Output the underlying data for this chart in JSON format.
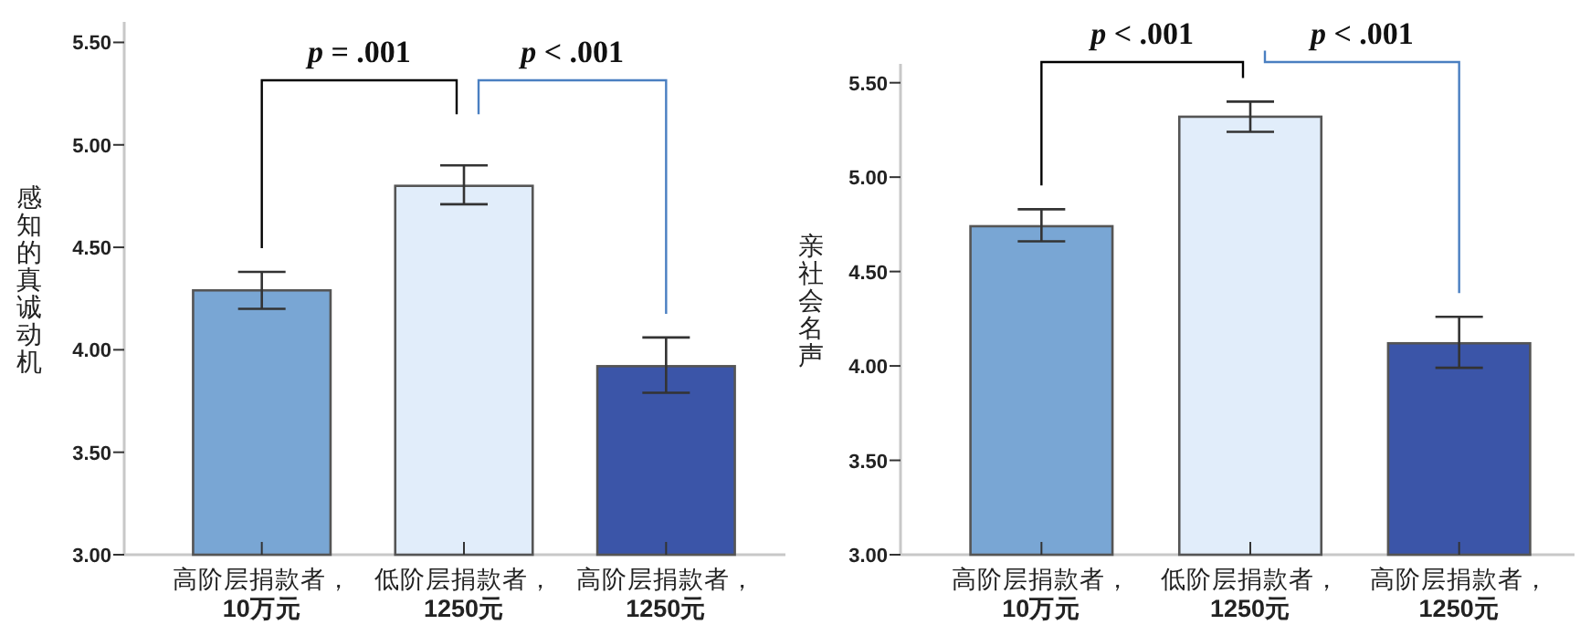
{
  "chart_data": [
    {
      "type": "bar",
      "ylabel": "感知的真诚动机",
      "categories": [
        "高阶层捐款者，\n10万元",
        "低阶层捐款者，\n1250元",
        "高阶层捐款者，\n1250元"
      ],
      "values": [
        4.29,
        4.8,
        3.92
      ],
      "colors": [
        "#79a6d4",
        "#e1edfa",
        "#3b55a8"
      ],
      "errors": [
        [
          4.2,
          4.38
        ],
        [
          4.71,
          4.9
        ],
        [
          3.79,
          4.06
        ]
      ],
      "ylim": [
        3,
        5.6
      ],
      "yticks": [
        {
          "value": 3,
          "label": "3.00"
        },
        {
          "value": 3.5,
          "label": "3.50"
        },
        {
          "value": 4,
          "label": "4.00"
        },
        {
          "value": 4.5,
          "label": "4.50"
        },
        {
          "value": 5,
          "label": "5.00"
        },
        {
          "value": 5.5,
          "label": "5.50"
        }
      ],
      "annotations": [
        "p = .001",
        "p < .001"
      ]
    },
    {
      "type": "bar",
      "ylabel": "亲社会名声",
      "categories": [
        "高阶层捐款者，\n10万元",
        "低阶层捐款者，\n1250元",
        "高阶层捐款者，\n1250元"
      ],
      "values": [
        4.74,
        5.32,
        4.12
      ],
      "colors": [
        "#79a6d4",
        "#e1edfa",
        "#3b55a8"
      ],
      "errors": [
        [
          4.66,
          4.83
        ],
        [
          5.24,
          5.4
        ],
        [
          3.99,
          4.26
        ]
      ],
      "ylim": [
        3,
        5.6
      ],
      "yticks": [
        {
          "value": 3,
          "label": "3.00"
        },
        {
          "value": 3.5,
          "label": "3.50"
        },
        {
          "value": 4,
          "label": "4.00"
        },
        {
          "value": 4.5,
          "label": "4.50"
        },
        {
          "value": 5,
          "label": "5.00"
        },
        {
          "value": 5.5,
          "label": "5.50"
        }
      ],
      "annotations": [
        "p < .001",
        "p < .001"
      ]
    }
  ]
}
